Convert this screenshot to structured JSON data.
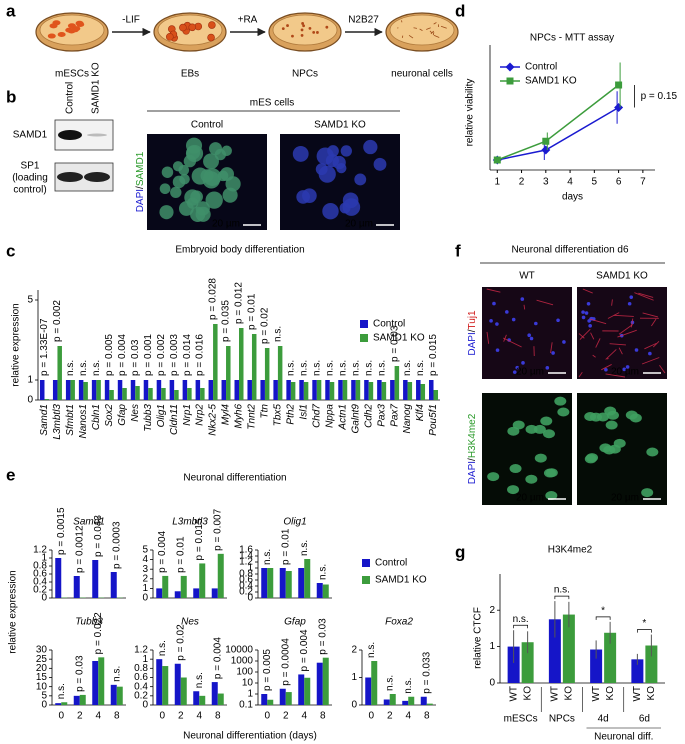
{
  "panels": {
    "a": {
      "label": "a",
      "steps": [
        "-LIF",
        "+RA",
        "N2B27"
      ],
      "stages": [
        "mESCs",
        "EBs",
        "NPCs",
        "neuronal cells"
      ]
    },
    "b": {
      "label": "b",
      "lanes": [
        "Control",
        "SAMD1 KO"
      ],
      "blot_labels": [
        [
          "SAMD1"
        ],
        [
          "SP1",
          "(loading",
          "control)"
        ]
      ],
      "images": {
        "title": "mES cells",
        "columns": [
          "Control",
          "SAMD1 KO"
        ],
        "stain": [
          "DAPI",
          "/",
          "SAMD1"
        ],
        "scale_bar": "20 µm"
      }
    },
    "f": {
      "label": "f",
      "title": "Neuronal differentiation d6",
      "columns": [
        "WT",
        "SAMD1 KO"
      ],
      "rows": [
        [
          "DAPI",
          "/",
          "Tuj1"
        ],
        [
          "DAPI",
          "/",
          "H3K4me2"
        ]
      ],
      "scale_bar": "20 µm"
    }
  },
  "chart_data": [
    {
      "label": "d",
      "type": "line",
      "title": "NPCs - MTT assay",
      "xlabel": "days",
      "ylabel": "relative viability",
      "x": [
        1,
        3,
        6
      ],
      "xlim": [
        0.7,
        7.5
      ],
      "xticks": [
        1,
        2,
        3,
        4,
        5,
        6,
        7
      ],
      "ylim": [
        0.6,
        5.2
      ],
      "series": [
        {
          "name": "Control",
          "color": "#1a1ad0",
          "marker": "diamond",
          "values": [
            1,
            1.4,
            3.1
          ],
          "errors": [
            0,
            0.4,
            0.65
          ]
        },
        {
          "name": "SAMD1 KO",
          "color": "#3c9c3c",
          "marker": "square",
          "values": [
            1,
            1.75,
            4.0
          ],
          "errors": [
            0,
            0.35,
            0.9
          ]
        }
      ],
      "legend": "upper left",
      "annotation": "p = 0.15"
    },
    {
      "label": "c",
      "type": "bar",
      "title": "Embryoid body differentiation",
      "ylabel": "relative expression",
      "categories": [
        "Samd1",
        "L3mbtl3",
        "Sfmbt1",
        "Nanos1",
        "Cbln1",
        "Sox2",
        "Gfap",
        "Nes",
        "Tubb3",
        "Olig1",
        "Cldn11",
        "Nrp1",
        "Nrp2",
        "Nkx2-5",
        "Myl4",
        "Myh6",
        "Tnnt2",
        "Ttn",
        "Tbx5",
        "Pth2",
        "Isl1",
        "Chd7",
        "Nppa",
        "Actn1",
        "Galnt9",
        "Cdh2",
        "Pax3",
        "Pax7",
        "Nanog",
        "Klf4",
        "Pou5f1"
      ],
      "ylim": [
        0,
        5.5
      ],
      "yticks": [
        0,
        1,
        5
      ],
      "series": [
        {
          "name": "Control",
          "color": "#1515c8",
          "values": [
            1,
            1,
            1,
            1,
            1,
            1,
            1,
            1,
            1,
            1,
            1,
            1,
            1,
            1,
            1,
            1,
            1,
            1,
            1,
            1,
            1,
            1,
            1,
            1,
            1,
            1,
            1,
            1,
            1,
            1,
            1
          ]
        },
        {
          "name": "SAMD1 KO",
          "color": "#3c9c3c",
          "values": [
            0.05,
            2.7,
            1.0,
            0.9,
            1.0,
            0.5,
            0.6,
            0.7,
            0.6,
            0.6,
            0.5,
            0.6,
            0.6,
            3.8,
            2.7,
            3.6,
            3.3,
            2.6,
            2.7,
            0.9,
            0.9,
            1.0,
            0.9,
            1.0,
            1.0,
            0.9,
            0.9,
            1.7,
            0.9,
            0.8,
            0.5
          ]
        }
      ],
      "annotations": [
        "p = 1.33E-07",
        "p = 0.002",
        "n.s.",
        "n.s.",
        "n.s.",
        "p = 0.005",
        "p = 0.004",
        "p = 0.03",
        "p = 0.001",
        "p = 0.002",
        "p = 0.003",
        "p = 0.014",
        "p = 0.016",
        "p = 0.028",
        "p = 0.035",
        "p = 0.012",
        "p = 0.01",
        "p = 0.02",
        "n.s.",
        "n.s.",
        "n.s.",
        "n.s.",
        "n.s.",
        "n.s.",
        "n.s.",
        "n.s.",
        "n.s.",
        "p = 0.03",
        "n.s.",
        "n.s.",
        "p = 0.015"
      ],
      "legend": "upper right"
    },
    {
      "label": "e",
      "type": "bar",
      "title": "Neuronal differentiation",
      "xlabel": "Neuronal differentiation (days)",
      "ylabel": "relative expression",
      "categories": [
        0,
        2,
        4,
        8
      ],
      "series": [
        {
          "name": "Control",
          "color": "#1515c8"
        },
        {
          "name": "SAMD1 KO",
          "color": "#3c9c3c"
        }
      ],
      "subplots": [
        {
          "title": "Samd1",
          "ylim": [
            0,
            1.2
          ],
          "yticks": [
            0,
            0.2,
            0.4,
            0.6,
            0.8,
            1,
            1.2
          ],
          "values": [
            [
              1,
              0.55,
              0.95,
              0.65
            ],
            [
              0.01,
              0.01,
              0.01,
              0.01
            ]
          ],
          "annotations": [
            "p = 0.0015",
            "p = 0.0012",
            "p = 0.043",
            "p = 0.0003"
          ]
        },
        {
          "title": "L3mbtl3",
          "ylim": [
            0,
            5
          ],
          "yticks": [
            0,
            1,
            2,
            3,
            4,
            5
          ],
          "values": [
            [
              1,
              0.7,
              1.0,
              1.0
            ],
            [
              2.3,
              2.3,
              3.6,
              4.6
            ]
          ],
          "annotations": [
            "p = 0.004",
            "p = 0.01",
            "p = 0.015",
            "p = 0.007"
          ]
        },
        {
          "title": "Olig1",
          "ylim": [
            0,
            1.6
          ],
          "yticks": [
            0,
            0.2,
            0.4,
            0.6,
            0.8,
            1,
            1.2,
            1.4,
            1.6
          ],
          "values": [
            [
              1,
              1,
              1,
              0.5
            ],
            [
              1,
              0.9,
              1.3,
              0.45
            ]
          ],
          "annotations": [
            "n.s.",
            "p = 0.01",
            "n.s.",
            "n.s."
          ]
        },
        {
          "title": "Tubb3",
          "ylim": [
            0,
            30
          ],
          "yticks": [
            0,
            5,
            10,
            15,
            20,
            25,
            30
          ],
          "values": [
            [
              1,
              5,
              24,
              11
            ],
            [
              1.5,
              5.5,
              26,
              10
            ]
          ],
          "annotations": [
            "n.s.",
            "p = 0.03",
            "p = 0.022",
            "n.s."
          ]
        },
        {
          "title": "Nes",
          "ylim": [
            0,
            1.2
          ],
          "yticks": [
            0,
            0.2,
            0.4,
            0.6,
            0.8,
            1,
            1.2
          ],
          "values": [
            [
              1,
              0.9,
              0.3,
              0.5
            ],
            [
              0.85,
              0.6,
              0.2,
              0.25
            ]
          ],
          "annotations": [
            "n.s.",
            "p = 0.02",
            "n.s.",
            "p = 0.004"
          ]
        },
        {
          "title": "Gfap",
          "log": true,
          "ylim": [
            0.1,
            10000
          ],
          "yticks": [
            0.1,
            1,
            10,
            100,
            1000,
            10000
          ],
          "values": [
            [
              1,
              3,
              60,
              700
            ],
            [
              0.3,
              1.5,
              30,
              2000
            ]
          ],
          "annotations": [
            "p = 0.005",
            "p = 0.0004",
            "p = 0.004",
            "p = 0.03"
          ]
        },
        {
          "title": "Foxa2",
          "ylim": [
            0,
            2
          ],
          "yticks": [
            0,
            1,
            2
          ],
          "values": [
            [
              1,
              0.2,
              0.15,
              0.3
            ],
            [
              1.6,
              0.4,
              0.3,
              0.05
            ]
          ],
          "annotations": [
            "n.s.",
            "n.s.",
            "n.s.",
            "p = 0.033"
          ]
        }
      ]
    },
    {
      "label": "g",
      "type": "bar",
      "title": "H3K4me2",
      "ylabel": "relative CTCF",
      "categories": [
        "mESCs",
        "NPCs",
        "4d",
        "6d"
      ],
      "group_label": "Neuronal diff.",
      "ylim": [
        0,
        2.5
      ],
      "yticks": [
        0,
        1,
        2
      ],
      "series": [
        {
          "name": "WT",
          "color": "#1515c8",
          "values": [
            1.0,
            1.75,
            0.92,
            0.65
          ],
          "errors": [
            0.45,
            0.5,
            0.25,
            0.15
          ]
        },
        {
          "name": "KO",
          "color": "#3c9c3c",
          "values": [
            1.12,
            1.88,
            1.38,
            1.03
          ],
          "errors": [
            0.3,
            0.35,
            0.3,
            0.3
          ]
        }
      ],
      "annotations": [
        "n.s.",
        "n.s.",
        "*",
        "*"
      ]
    }
  ]
}
